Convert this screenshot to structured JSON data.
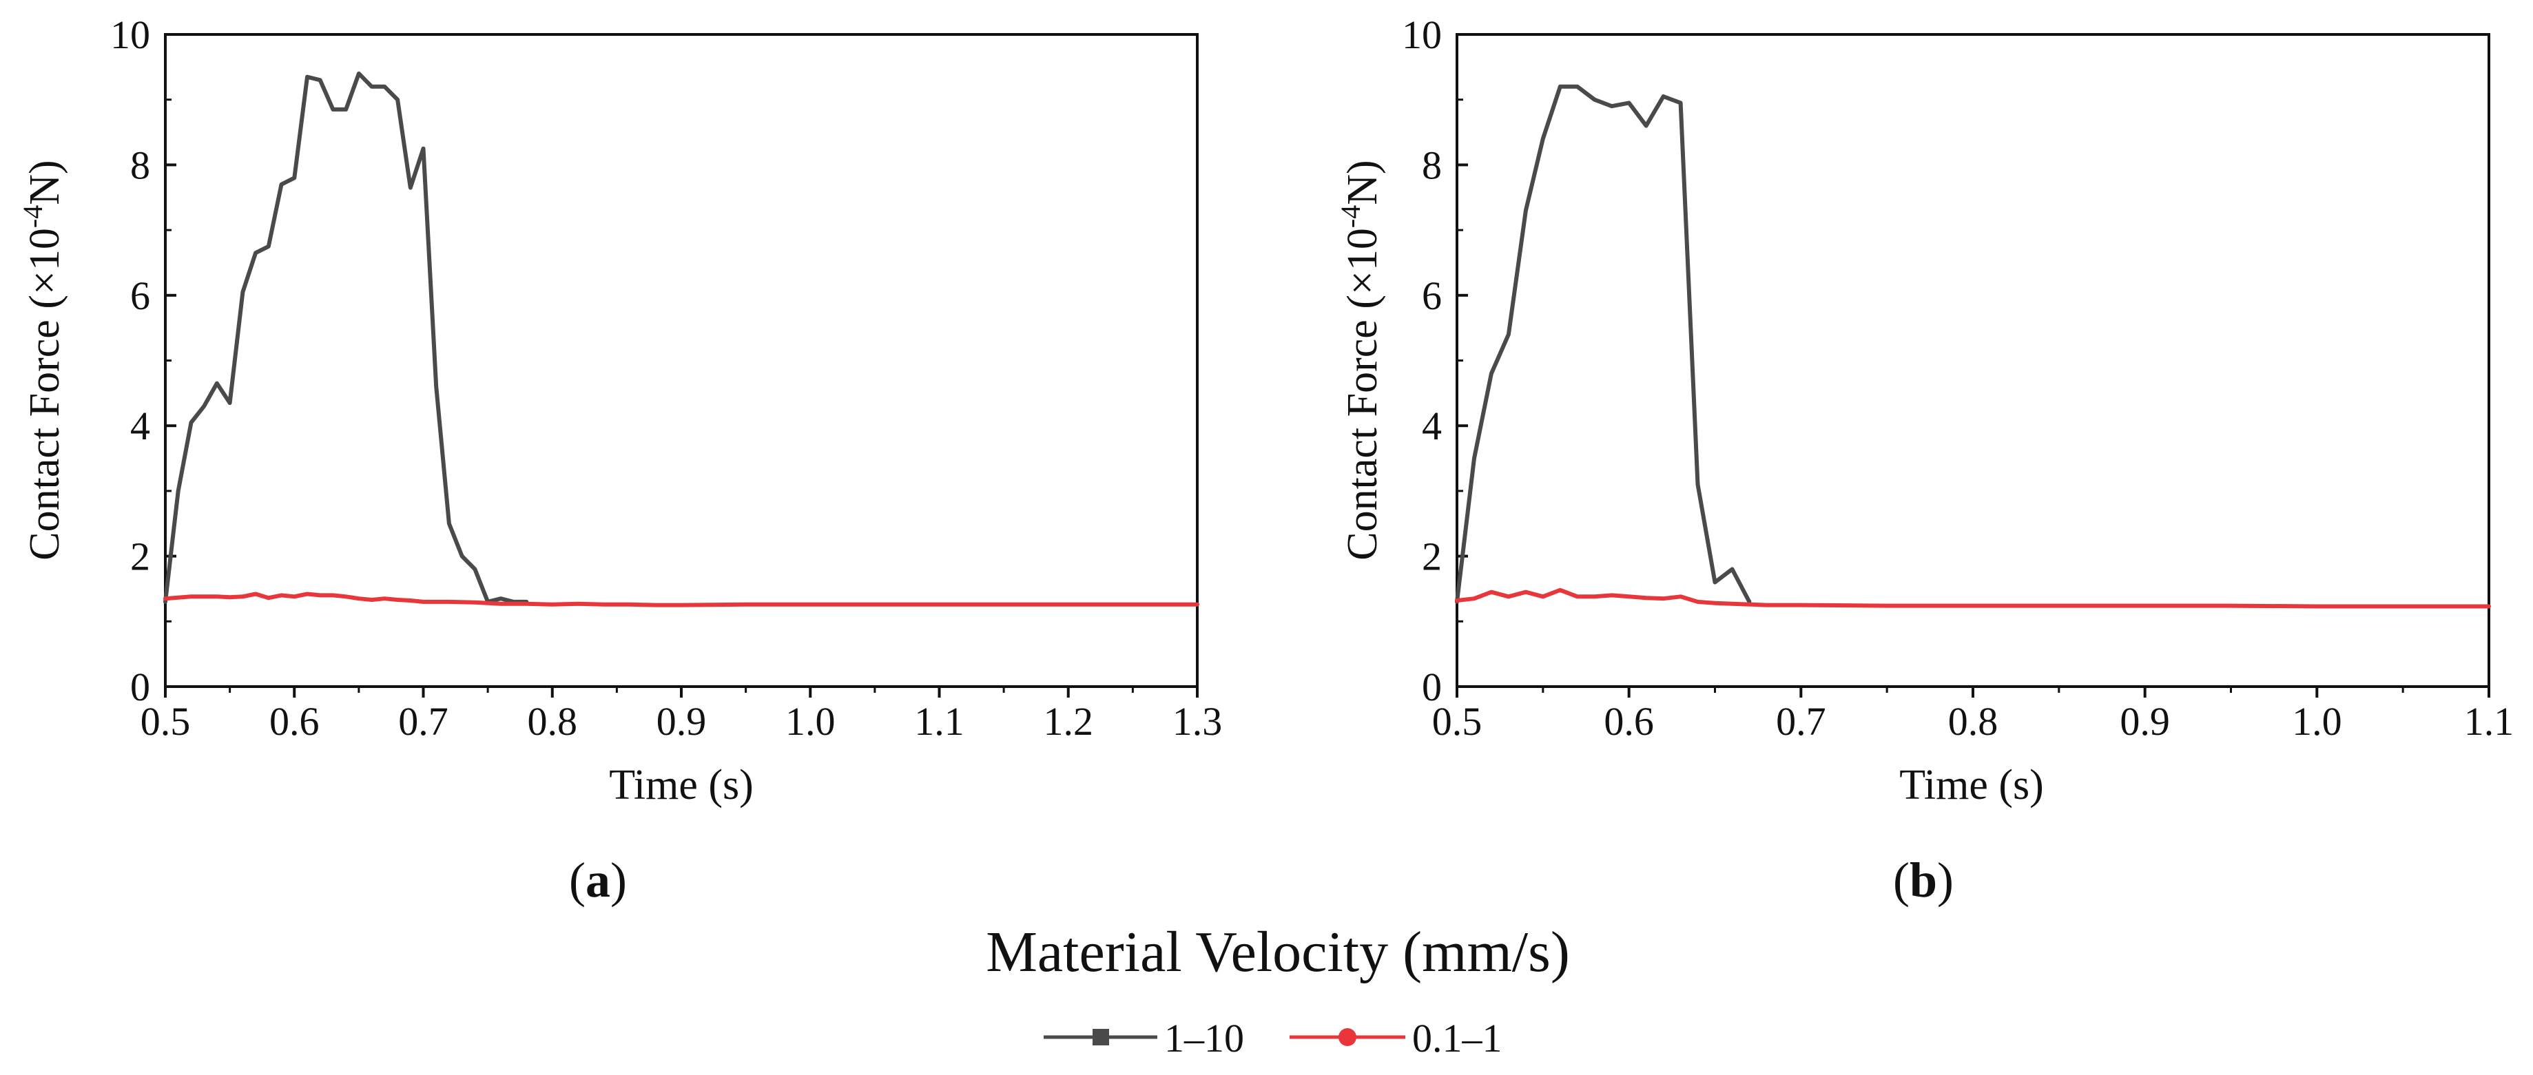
{
  "legend": {
    "title": "Material Velocity (mm/s)",
    "entries": [
      {
        "name": "1–10",
        "color": "#4a4a4a",
        "marker": "square"
      },
      {
        "name": "0.1–1",
        "color": "#e8363a",
        "marker": "circle"
      }
    ]
  },
  "chart_data": [
    {
      "type": "line",
      "panel_label": "a",
      "xlabel": "Time (s)",
      "ylabel_prefix": "Contact Force (×10",
      "ylabel_exponent": "-4",
      "ylabel_suffix": "N)",
      "xlim": [
        0.5,
        1.3
      ],
      "ylim": [
        0,
        10
      ],
      "xticks": [
        "0.5",
        "0.6",
        "0.7",
        "0.8",
        "0.9",
        "1.0",
        "1.1",
        "1.2",
        "1.3"
      ],
      "yticks": [
        "0",
        "2",
        "4",
        "6",
        "8",
        "10"
      ],
      "xtick_values": [
        0.5,
        0.6,
        0.7,
        0.8,
        0.9,
        1.0,
        1.1,
        1.2,
        1.3
      ],
      "ytick_values": [
        0,
        2,
        4,
        6,
        8,
        10
      ],
      "series": [
        {
          "name": "1–10",
          "color": "#4a4a4a",
          "x": [
            0.5,
            0.51,
            0.52,
            0.53,
            0.54,
            0.55,
            0.56,
            0.57,
            0.58,
            0.59,
            0.6,
            0.61,
            0.62,
            0.63,
            0.64,
            0.65,
            0.66,
            0.67,
            0.68,
            0.69,
            0.7,
            0.71,
            0.72,
            0.73,
            0.74,
            0.75,
            0.76,
            0.77,
            0.78
          ],
          "y": [
            1.3,
            3.0,
            4.05,
            4.3,
            4.65,
            4.35,
            6.05,
            6.65,
            6.75,
            7.7,
            7.8,
            9.35,
            9.3,
            8.85,
            8.85,
            9.4,
            9.2,
            9.2,
            9.0,
            7.65,
            8.25,
            4.6,
            2.5,
            2.0,
            1.8,
            1.3,
            1.35,
            1.3,
            1.3
          ]
        },
        {
          "name": "0.1–1",
          "color": "#e8363a",
          "x": [
            0.5,
            0.52,
            0.54,
            0.55,
            0.56,
            0.57,
            0.58,
            0.59,
            0.6,
            0.61,
            0.62,
            0.63,
            0.64,
            0.65,
            0.66,
            0.67,
            0.68,
            0.69,
            0.7,
            0.72,
            0.74,
            0.76,
            0.78,
            0.8,
            0.82,
            0.84,
            0.86,
            0.88,
            0.9,
            0.95,
            1.0,
            1.05,
            1.1,
            1.15,
            1.2,
            1.25,
            1.3
          ],
          "y": [
            1.35,
            1.38,
            1.38,
            1.37,
            1.38,
            1.42,
            1.36,
            1.4,
            1.38,
            1.42,
            1.4,
            1.4,
            1.38,
            1.35,
            1.33,
            1.35,
            1.33,
            1.32,
            1.3,
            1.3,
            1.29,
            1.27,
            1.27,
            1.26,
            1.27,
            1.26,
            1.26,
            1.25,
            1.25,
            1.26,
            1.26,
            1.26,
            1.26,
            1.26,
            1.26,
            1.26,
            1.26
          ]
        }
      ]
    },
    {
      "type": "line",
      "panel_label": "b",
      "xlabel": "Time (s)",
      "ylabel_prefix": "Contact Force (×10",
      "ylabel_exponent": "-4",
      "ylabel_suffix": "N)",
      "xlim": [
        0.5,
        1.1
      ],
      "ylim": [
        0,
        10
      ],
      "xticks": [
        "0.5",
        "0.6",
        "0.7",
        "0.8",
        "0.9",
        "1.0",
        "1.1"
      ],
      "yticks": [
        "0",
        "2",
        "4",
        "6",
        "8",
        "10"
      ],
      "xtick_values": [
        0.5,
        0.6,
        0.7,
        0.8,
        0.9,
        1.0,
        1.1
      ],
      "ytick_values": [
        0,
        2,
        4,
        6,
        8,
        10
      ],
      "series": [
        {
          "name": "1–10",
          "color": "#4a4a4a",
          "x": [
            0.5,
            0.51,
            0.52,
            0.53,
            0.54,
            0.55,
            0.56,
            0.57,
            0.58,
            0.59,
            0.6,
            0.61,
            0.62,
            0.63,
            0.64,
            0.65,
            0.66,
            0.67
          ],
          "y": [
            1.3,
            3.5,
            4.8,
            5.4,
            7.3,
            8.4,
            9.2,
            9.2,
            9.0,
            8.9,
            8.95,
            8.6,
            9.05,
            8.95,
            3.1,
            1.6,
            1.8,
            1.3
          ]
        },
        {
          "name": "0.1–1",
          "color": "#e8363a",
          "x": [
            0.5,
            0.51,
            0.52,
            0.53,
            0.54,
            0.55,
            0.56,
            0.57,
            0.58,
            0.59,
            0.6,
            0.61,
            0.62,
            0.63,
            0.64,
            0.65,
            0.66,
            0.68,
            0.7,
            0.75,
            0.8,
            0.85,
            0.9,
            0.95,
            1.0,
            1.05,
            1.1
          ],
          "y": [
            1.32,
            1.35,
            1.45,
            1.38,
            1.45,
            1.38,
            1.48,
            1.38,
            1.38,
            1.4,
            1.38,
            1.36,
            1.35,
            1.38,
            1.3,
            1.28,
            1.27,
            1.25,
            1.25,
            1.24,
            1.24,
            1.24,
            1.24,
            1.24,
            1.23,
            1.23,
            1.23
          ]
        }
      ]
    }
  ]
}
